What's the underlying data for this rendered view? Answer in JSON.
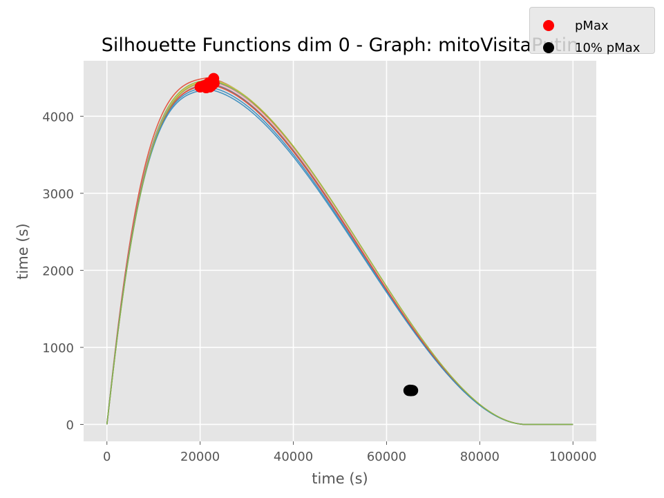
{
  "chart_data": {
    "type": "line",
    "title": "Silhouette Functions dim 0 - Graph:  mitoVisitaPutin",
    "xlabel": "time (s)",
    "ylabel": "time (s)",
    "xlim": [
      -5000,
      105000
    ],
    "ylim": [
      -220,
      4720
    ],
    "xticks": [
      0,
      20000,
      40000,
      60000,
      80000,
      100000
    ],
    "xtick_labels": [
      "0",
      "20000",
      "40000",
      "60000",
      "80000",
      "100000"
    ],
    "yticks": [
      0,
      1000,
      2000,
      3000,
      4000
    ],
    "ytick_labels": [
      "0",
      "1000",
      "2000",
      "3000",
      "4000"
    ],
    "grid": true,
    "background": "#e5e5e5",
    "legend_position": "top-right",
    "series": [
      {
        "color": "#7f7f7f",
        "peak_x": 22000,
        "peak_y": 4460
      },
      {
        "color": "#e24a33",
        "peak_x": 21600,
        "peak_y": 4500
      },
      {
        "color": "#348abd",
        "peak_x": 21800,
        "peak_y": 4380
      },
      {
        "color": "#8eba42",
        "peak_x": 22200,
        "peak_y": 4480
      },
      {
        "color": "#fbc15e",
        "peak_x": 22400,
        "peak_y": 4470
      },
      {
        "color": "#988ed5",
        "peak_x": 21900,
        "peak_y": 4430
      },
      {
        "color": "#777777",
        "peak_x": 22100,
        "peak_y": 4420
      },
      {
        "color": "#ffb5b8",
        "peak_x": 22300,
        "peak_y": 4440
      },
      {
        "color": "#e24a33",
        "peak_x": 22000,
        "peak_y": 4410
      },
      {
        "color": "#348abd",
        "peak_x": 21700,
        "peak_y": 4350
      },
      {
        "color": "#8eba42",
        "peak_x": 22500,
        "peak_y": 4460
      }
    ],
    "pmax_points": [
      {
        "x": 20000,
        "y": 4380
      },
      {
        "x": 20600,
        "y": 4390
      },
      {
        "x": 21000,
        "y": 4400
      },
      {
        "x": 21300,
        "y": 4370
      },
      {
        "x": 21600,
        "y": 4410
      },
      {
        "x": 21800,
        "y": 4430
      },
      {
        "x": 22100,
        "y": 4380
      },
      {
        "x": 22300,
        "y": 4440
      },
      {
        "x": 22500,
        "y": 4400
      },
      {
        "x": 22700,
        "y": 4460
      },
      {
        "x": 22900,
        "y": 4490
      },
      {
        "x": 23000,
        "y": 4430
      }
    ],
    "pmax10_points": [
      {
        "x": 64800,
        "y": 440
      },
      {
        "x": 65000,
        "y": 445
      },
      {
        "x": 65200,
        "y": 438
      },
      {
        "x": 65400,
        "y": 442
      },
      {
        "x": 65600,
        "y": 440
      }
    ],
    "legend": [
      {
        "label": "pMax",
        "color": "#ff0000"
      },
      {
        "label": "10% pMax",
        "color": "#000000"
      }
    ]
  }
}
